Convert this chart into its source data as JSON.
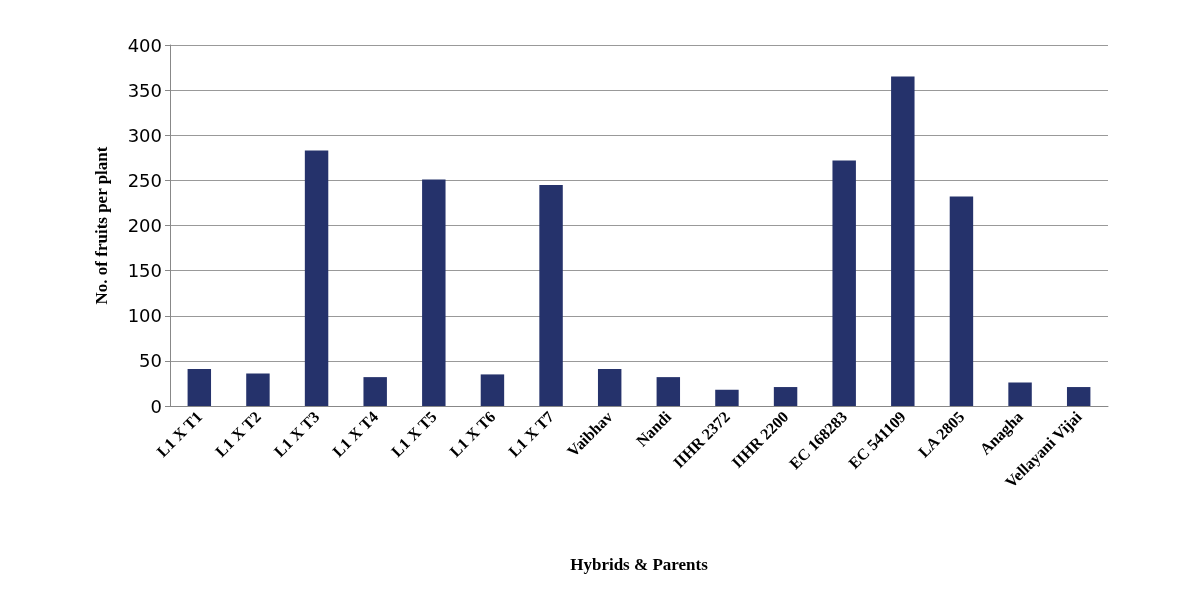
{
  "chart_data": {
    "type": "bar",
    "xlabel": "Hybrids & Parents",
    "ylabel": "No. of fruits per plant",
    "categories": [
      "L1 X T1",
      "L1 X T2",
      "L1 X T3",
      "L1 X T4",
      "L1 X T5",
      "L1 X T6",
      "L1 X T7",
      "Vaibhav",
      "Nandi",
      "IIHR 2372",
      "IIHR 2200",
      "EC 168283",
      "EC 541109",
      "LA 2805",
      "Anagha",
      "Vellayani Vijai"
    ],
    "values": [
      41,
      36,
      283,
      32,
      251,
      35,
      245,
      41,
      32,
      18,
      21,
      272,
      365,
      232,
      26,
      21
    ],
    "color": "#25326b",
    "ylim": [
      0,
      400
    ],
    "yticks": [
      0,
      50,
      100,
      150,
      200,
      250,
      300,
      350,
      400
    ],
    "grid": "y"
  }
}
